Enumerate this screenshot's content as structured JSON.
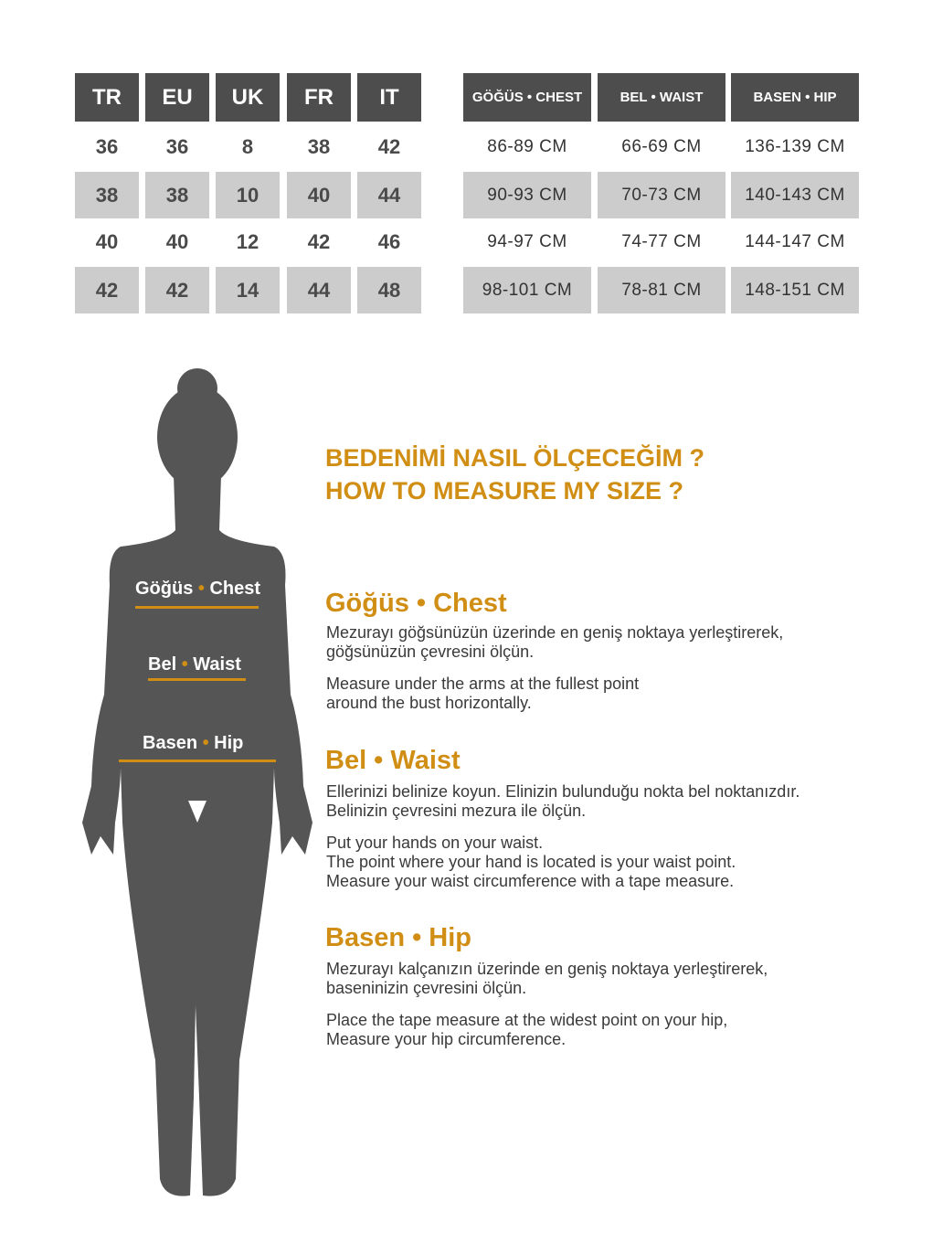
{
  "size_table": {
    "headers": [
      "TR",
      "EU",
      "UK",
      "FR",
      "IT"
    ],
    "rows": [
      [
        "36",
        "36",
        "8",
        "38",
        "42"
      ],
      [
        "38",
        "38",
        "10",
        "40",
        "44"
      ],
      [
        "40",
        "40",
        "12",
        "42",
        "46"
      ],
      [
        "42",
        "42",
        "14",
        "44",
        "48"
      ]
    ]
  },
  "measure_table": {
    "headers": [
      "GÖĞÜS • CHEST",
      "BEL • WAIST",
      "BASEN • HIP"
    ],
    "rows": [
      [
        "86-89 CM",
        "66-69 CM",
        "136-139 CM"
      ],
      [
        "90-93 CM",
        "70-73 CM",
        "140-143 CM"
      ],
      [
        "94-97 CM",
        "74-77 CM",
        "144-147 CM"
      ],
      [
        "98-101 CM",
        "78-81 CM",
        "148-151 CM"
      ]
    ]
  },
  "figure": {
    "chest_tr": "Göğüs",
    "chest_en": "Chest",
    "waist_tr": "Bel",
    "waist_en": "Waist",
    "hip_tr": "Basen",
    "hip_en": "Hip",
    "dot": "•"
  },
  "heading": {
    "tr": "BEDENİMİ NASIL ÖLÇECEĞİM ?",
    "en": "HOW TO MEASURE MY SIZE ?"
  },
  "sections": [
    {
      "title": "Göğüs • Chest",
      "tr": "Mezurayı göğsünüzün üzerinde en geniş noktaya yerleştirerek,\ngöğsünüzün çevresini ölçün.",
      "en": "Measure under the arms at the fullest point\naround the bust horizontally."
    },
    {
      "title": "Bel • Waist",
      "tr": "Ellerinizi belinize koyun. Elinizin bulunduğu nokta bel noktanızdır.\nBelinizin çevresini mezura ile ölçün.",
      "en": "Put your hands on your waist.\nThe point where your hand is located is your waist point.\nMeasure your waist circumference with a tape measure."
    },
    {
      "title": "Basen • Hip",
      "tr": "Mezurayı kalçanızın üzerinde en geniş noktaya yerleştirerek,\nbaseninizin çevresini ölçün.",
      "en": "Place the tape measure at the widest point on your hip,\nMeasure your hip circumference."
    }
  ],
  "colors": {
    "header": "#4d4d4d",
    "stripe": "#cccccc",
    "accent": "#d18e14",
    "silhouette": "#555555"
  }
}
